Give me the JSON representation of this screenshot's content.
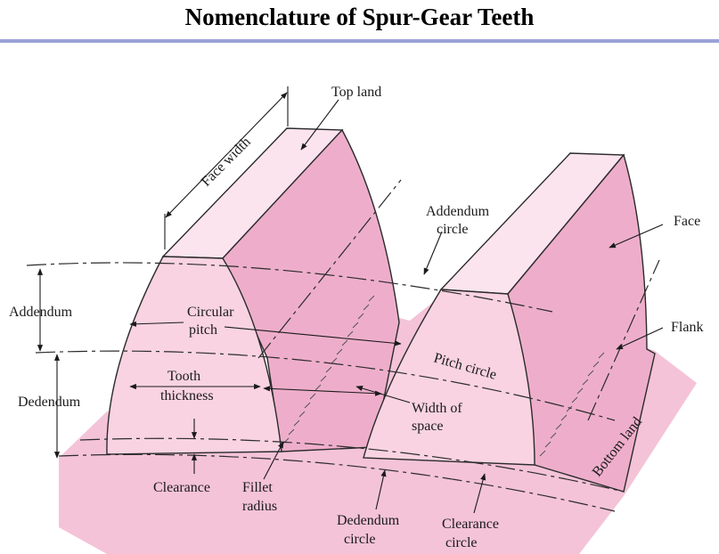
{
  "title": "Nomenclature of Spur-Gear Teeth",
  "colors": {
    "base": "#f4c3d7",
    "face": "#eeaecb",
    "flank": "#f9d3e1",
    "top_land": "#fce4ee",
    "outline": "#2b2b2b",
    "title_rule": "#9aa3d6"
  },
  "labels": {
    "top_land": "Top land",
    "face_width": "Face width",
    "addendum_circle_1": "Addendum",
    "addendum_circle_2": "circle",
    "face": "Face",
    "flank": "Flank",
    "addendum": "Addendum",
    "circular_pitch_1": "Circular",
    "circular_pitch_2": "pitch",
    "pitch_circle": "Pitch circle",
    "dedendum": "Dedendum",
    "tooth_thickness_1": "Tooth",
    "tooth_thickness_2": "thickness",
    "width_of_space_1": "Width of",
    "width_of_space_2": "space",
    "bottom_land": "Bottom land",
    "clearance": "Clearance",
    "fillet_radius_1": "Fillet",
    "fillet_radius_2": "radius",
    "dedendum_circle_1": "Dedendum",
    "dedendum_circle_2": "circle",
    "clearance_circle_1": "Clearance",
    "clearance_circle_2": "circle"
  }
}
